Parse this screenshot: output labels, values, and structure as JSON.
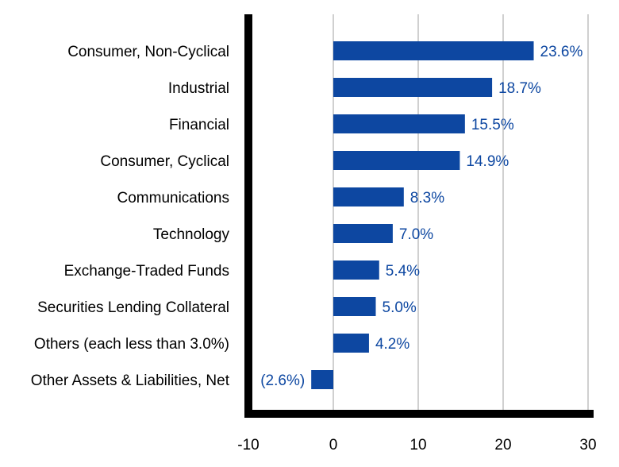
{
  "chart_data": {
    "type": "bar",
    "orientation": "horizontal",
    "title": "",
    "xlabel": "",
    "ylabel": "",
    "xlim": [
      -10,
      30
    ],
    "x_ticks": [
      -10,
      0,
      10,
      20,
      30
    ],
    "x_tick_labels": [
      "-10",
      "0",
      "10",
      "20",
      "30"
    ],
    "grid": "vertical",
    "legend": "none",
    "bar_color": "#0d47a1",
    "label_color": "#0d47a1",
    "categories": [
      "Consumer, Non-Cyclical",
      "Industrial",
      "Financial",
      "Consumer, Cyclical",
      "Communications",
      "Technology",
      "Exchange-Traded Funds",
      "Securities Lending Collateral",
      "Others (each less than 3.0%)",
      "Other Assets & Liabilities, Net"
    ],
    "values": [
      23.6,
      18.7,
      15.5,
      14.9,
      8.3,
      7.0,
      5.4,
      5.0,
      4.2,
      -2.6
    ],
    "data_labels": [
      "23.6%",
      "18.7%",
      "15.5%",
      "14.9%",
      "8.3%",
      "7.0%",
      "5.4%",
      "5.0%",
      "4.2%",
      "(2.6%)"
    ]
  }
}
